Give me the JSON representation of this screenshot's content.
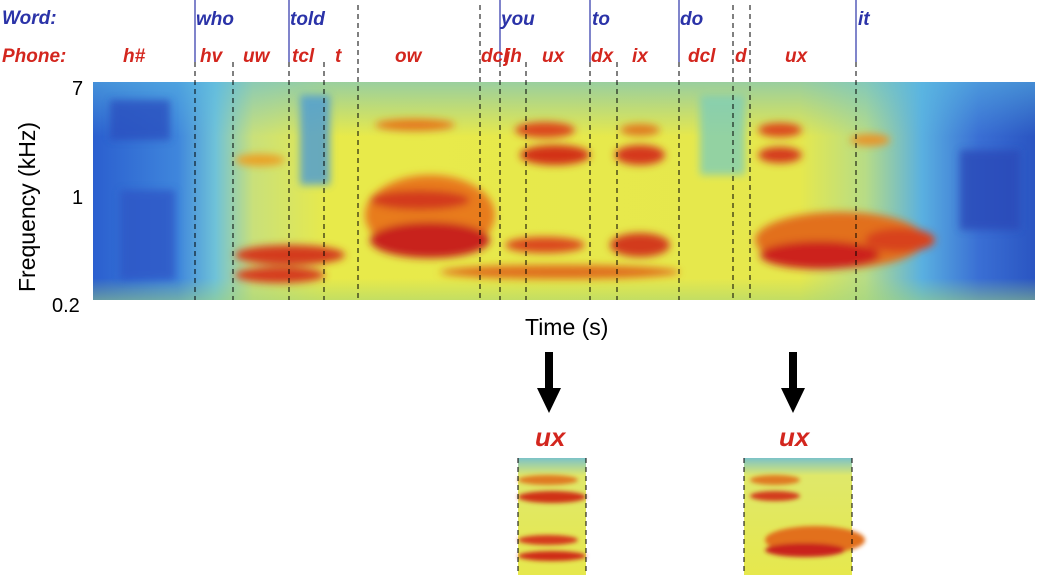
{
  "rows": {
    "word_title": "Word:",
    "phone_title": "Phone:"
  },
  "axis": {
    "y_label": "Frequency (kHz)",
    "y_ticks": [
      "7",
      "1",
      "0.2"
    ],
    "x_label": "Time (s)"
  },
  "words": [
    "who",
    "told",
    "you",
    "to",
    "do",
    "it"
  ],
  "phones": [
    "h#",
    "hv",
    "uw",
    "tcl",
    "t",
    "ow",
    "dcl",
    "jh",
    "ux",
    "dx",
    "ix",
    "dcl",
    "d",
    "ux"
  ],
  "crops": [
    {
      "label": "ux"
    },
    {
      "label": "ux"
    }
  ],
  "colors": {
    "word": "#2b33a8",
    "phone": "#d3261e"
  }
}
